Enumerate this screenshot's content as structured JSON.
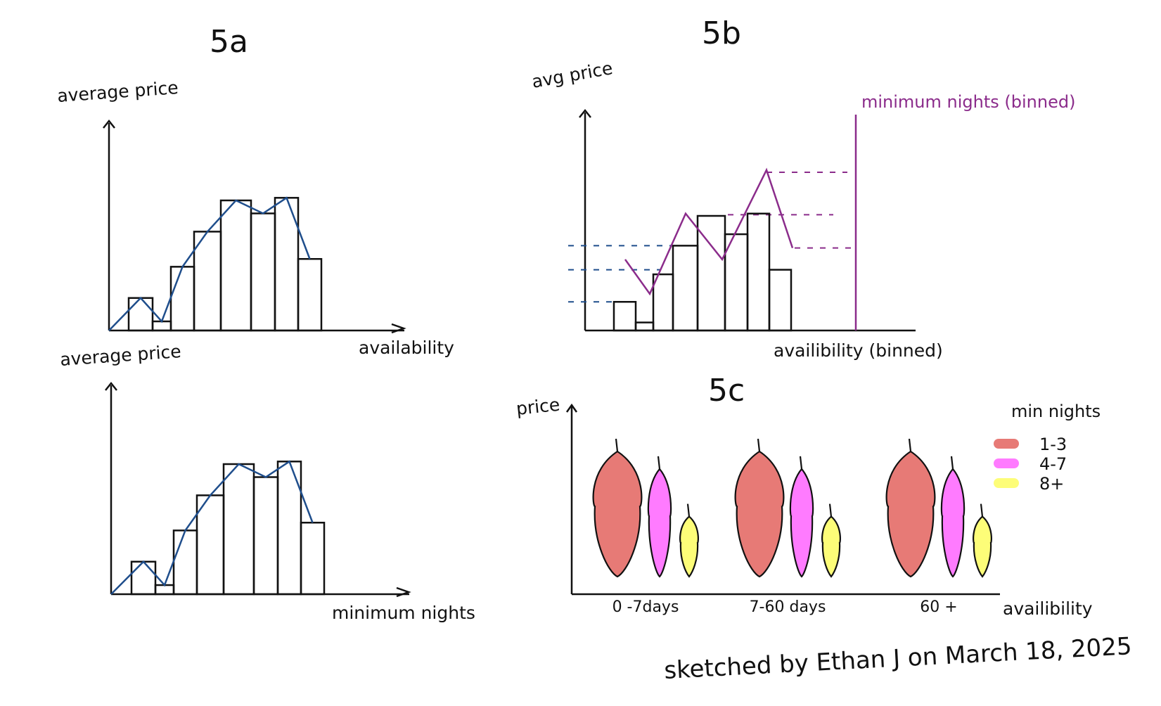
{
  "colors": {
    "ink": "#111111",
    "navy": "#1f4e8c",
    "purple": "#8b2c8b",
    "red": "#e77a76",
    "pink": "#ff7bff",
    "yellow": "#fdfd78"
  },
  "credit": "sketched by Ethan J on March 18, 2025",
  "chart_data": [
    {
      "id": "5a-top",
      "panel_label": "5a",
      "type": "bar",
      "overlay": "line",
      "ylabel": "average price",
      "xlabel": "availability",
      "values": [
        0.25,
        0.07,
        0.49,
        0.76,
        1.0,
        0.9,
        1.02,
        0.55
      ],
      "line_values": [
        0.0,
        0.25,
        0.07,
        0.49,
        0.76,
        1.0,
        0.9,
        1.02,
        0.55
      ]
    },
    {
      "id": "5a-bottom",
      "type": "bar",
      "overlay": "line",
      "ylabel": "average price",
      "xlabel": "minimum nights",
      "values": [
        0.25,
        0.07,
        0.49,
        0.76,
        1.0,
        0.9,
        1.02,
        0.55
      ],
      "line_values": [
        0.0,
        0.25,
        0.07,
        0.49,
        0.76,
        1.0,
        0.9,
        1.02,
        0.55
      ]
    },
    {
      "id": "5b",
      "panel_label": "5b",
      "type": "bar",
      "overlay": "line",
      "ylabel": "avg price",
      "xlabel": "availibility (binned)",
      "secondary_axis_label": "minimum nights (binned)",
      "values": [
        0.25,
        0.07,
        0.49,
        0.74,
        1.0,
        0.84,
        1.02,
        0.53
      ],
      "line_values": [
        0.62,
        0.32,
        1.02,
        0.62,
        1.4,
        0.72
      ],
      "reference_levels": [
        0.25,
        0.53,
        0.74,
        1.38,
        1.01,
        0.72
      ]
    },
    {
      "id": "5c",
      "panel_label": "5c",
      "type": "violin",
      "ylabel": "price",
      "xlabel": "availibility",
      "categories": [
        "0 -7days",
        "7-60 days",
        "60 +"
      ],
      "legend_title": "min nights",
      "series": [
        {
          "name": "1-3",
          "color": "#e77a76",
          "spread": [
            0.0,
            1.0
          ]
        },
        {
          "name": "4-7",
          "color": "#ff7bff",
          "spread": [
            0.0,
            0.86
          ]
        },
        {
          "name": "8+",
          "color": "#fdfd78",
          "spread": [
            0.0,
            0.48
          ]
        }
      ]
    }
  ]
}
